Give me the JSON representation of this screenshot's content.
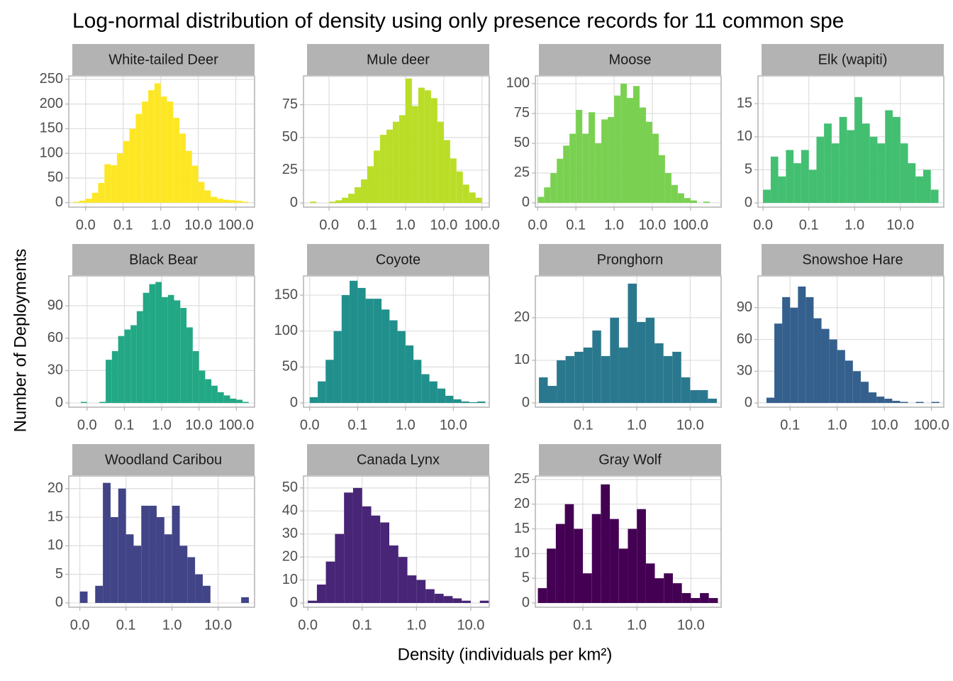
{
  "title": "Log-normal distribution of density using only presence records for 11 common spe",
  "x_label": "Density (individuals per km²)",
  "y_label": "Number of Deployments",
  "chart_data": [
    {
      "type": "histogram",
      "title": "White-tailed Deer",
      "color": "#fde725",
      "xscale": "log",
      "grid": true,
      "bins": [
        0.00464,
        0.00681,
        0.01,
        0.0147,
        0.0215,
        0.0316,
        0.0464,
        0.0681,
        0.1,
        0.147,
        0.215,
        0.316,
        0.464,
        0.681,
        1,
        1.47,
        2.15,
        3.16,
        4.64,
        6.81,
        10,
        14.7,
        21.5,
        31.6,
        46.4,
        68.1,
        100,
        147,
        215
      ],
      "values": [
        2,
        4,
        8,
        20,
        40,
        78,
        76,
        100,
        125,
        150,
        180,
        205,
        228,
        242,
        215,
        205,
        172,
        140,
        105,
        75,
        42,
        25,
        12,
        8,
        6,
        5,
        4,
        2
      ],
      "xlim": [
        0.00355,
        316
      ],
      "xticks": [
        {
          "value": 0.01,
          "label": "0.0"
        },
        0.1,
        {
          "value": 1,
          "label": "1.0"
        },
        {
          "value": 10,
          "label": "10.0"
        },
        {
          "value": 100,
          "label": "100.0"
        }
      ],
      "ylim": [
        -9,
        257
      ],
      "yticks": [
        0,
        50,
        100,
        150,
        200,
        250
      ]
    },
    {
      "type": "histogram",
      "title": "Mule deer",
      "color": "#bade28",
      "xscale": "log",
      "grid": true,
      "bins": [
        0.00316,
        0.00464,
        0.00681,
        0.01,
        0.0147,
        0.0215,
        0.0316,
        0.0464,
        0.0681,
        0.1,
        0.147,
        0.215,
        0.316,
        0.464,
        0.681,
        1,
        1.47,
        2.15,
        3.16,
        4.64,
        6.81,
        10,
        14.7,
        21.5,
        31.6,
        46.4,
        68.1,
        100
      ],
      "values": [
        1,
        0,
        0,
        1,
        2,
        4,
        7,
        12,
        18,
        28,
        40,
        52,
        56,
        62,
        67,
        95,
        74,
        88,
        86,
        80,
        62,
        48,
        34,
        24,
        14,
        8,
        4
      ],
      "xlim": [
        0.00214,
        155
      ],
      "xticks": [
        {
          "value": 0.01,
          "label": "0.0"
        },
        0.1,
        {
          "value": 1,
          "label": "1.0"
        },
        {
          "value": 10,
          "label": "10.0"
        },
        {
          "value": 100,
          "label": "100.0"
        }
      ],
      "ylim": [
        -3.2,
        97
      ],
      "yticks": [
        0,
        25,
        50,
        75
      ]
    },
    {
      "type": "histogram",
      "title": "Moose",
      "color": "#7ad151",
      "xscale": "log",
      "grid": true,
      "bins": [
        0.01,
        0.0147,
        0.0215,
        0.0316,
        0.0464,
        0.0681,
        0.1,
        0.147,
        0.215,
        0.316,
        0.464,
        0.681,
        1,
        1.47,
        2.15,
        3.16,
        4.64,
        6.81,
        10,
        14.7,
        21.5,
        31.6,
        46.4,
        68.1,
        100,
        147,
        215,
        316
      ],
      "values": [
        5,
        13,
        25,
        37,
        48,
        58,
        78,
        58,
        76,
        50,
        70,
        72,
        90,
        100,
        88,
        98,
        80,
        68,
        58,
        40,
        25,
        15,
        8,
        4,
        2,
        0,
        1
      ],
      "xlim": [
        0.0087,
        631
      ],
      "xticks": [
        {
          "value": 0.01,
          "label": "0.0"
        },
        0.1,
        {
          "value": 1,
          "label": "1.0"
        },
        {
          "value": 10,
          "label": "10.0"
        },
        {
          "value": 100,
          "label": "100.0"
        }
      ],
      "ylim": [
        -3.6,
        106.5
      ],
      "yticks": [
        0,
        25,
        50,
        75,
        100
      ]
    },
    {
      "type": "histogram",
      "title": "Elk (wapiti)",
      "color": "#43bf71",
      "xscale": "log",
      "grid": true,
      "bins": [
        0.01,
        0.0147,
        0.0215,
        0.0316,
        0.0464,
        0.0681,
        0.1,
        0.147,
        0.215,
        0.316,
        0.464,
        0.681,
        1,
        1.47,
        2.15,
        3.16,
        4.64,
        6.81,
        10,
        14.7,
        21.5,
        31.6,
        46.4,
        68.1
      ],
      "values": [
        2,
        7,
        4,
        8,
        6,
        8,
        5,
        10,
        12,
        9,
        13,
        11,
        16,
        12,
        10,
        9,
        14,
        13,
        9,
        6,
        4,
        5,
        2
      ],
      "xlim": [
        0.00776,
        89
      ],
      "xticks": [
        {
          "value": 0.01,
          "label": "0.0"
        },
        0.1,
        {
          "value": 1,
          "label": "1.0"
        },
        {
          "value": 10,
          "label": "10.0"
        }
      ],
      "ylim": [
        -0.64,
        19.2
      ],
      "yticks": [
        0,
        5,
        10,
        15
      ]
    },
    {
      "type": "histogram",
      "title": "Black Bear",
      "color": "#22a884",
      "xscale": "log",
      "grid": true,
      "bins": [
        0.00681,
        0.01,
        0.0147,
        0.0215,
        0.0316,
        0.0464,
        0.0681,
        0.1,
        0.147,
        0.215,
        0.316,
        0.464,
        0.681,
        1,
        1.47,
        2.15,
        3.16,
        4.64,
        6.81,
        10,
        14.7,
        21.5,
        31.6,
        46.4,
        68.1,
        100,
        147,
        215
      ],
      "values": [
        1,
        0,
        0,
        1,
        40,
        48,
        62,
        68,
        72,
        85,
        102,
        110,
        112,
        98,
        100,
        95,
        88,
        70,
        48,
        30,
        22,
        16,
        10,
        7,
        4,
        3,
        1
      ],
      "xlim": [
        0.00324,
        309
      ],
      "xticks": [
        {
          "value": 0.01,
          "label": "0.0"
        },
        0.1,
        {
          "value": 1,
          "label": "1.0"
        },
        {
          "value": 10,
          "label": "10.0"
        },
        {
          "value": 100,
          "label": "100.0"
        }
      ],
      "ylim": [
        -3.9,
        117.6
      ],
      "yticks": [
        0,
        30,
        60,
        90
      ]
    },
    {
      "type": "histogram",
      "title": "Coyote",
      "color": "#21908c",
      "xscale": "log",
      "grid": true,
      "bins": [
        0.01,
        0.0147,
        0.0215,
        0.0316,
        0.0464,
        0.0681,
        0.1,
        0.147,
        0.215,
        0.316,
        0.464,
        0.681,
        1,
        1.47,
        2.15,
        3.16,
        4.64,
        6.81,
        10,
        14.7,
        21.5,
        31.6,
        46.4
      ],
      "values": [
        8,
        30,
        60,
        100,
        150,
        170,
        160,
        145,
        145,
        130,
        115,
        100,
        80,
        60,
        40,
        30,
        20,
        10,
        5,
        2,
        1,
        2
      ],
      "xlim": [
        0.00741,
        56.2
      ],
      "xticks": [
        {
          "value": 0.01,
          "label": "0.0"
        },
        0.1,
        {
          "value": 1,
          "label": "1.0"
        },
        {
          "value": 10,
          "label": "10.0"
        }
      ],
      "ylim": [
        -5.9,
        176.7
      ],
      "yticks": [
        0,
        50,
        100,
        150
      ]
    },
    {
      "type": "histogram",
      "title": "Pronghorn",
      "color": "#2a788e",
      "xscale": "log",
      "grid": true,
      "bins": [
        0.0147,
        0.0215,
        0.0316,
        0.0464,
        0.0681,
        0.1,
        0.147,
        0.215,
        0.316,
        0.464,
        0.681,
        1,
        1.47,
        2.15,
        3.16,
        4.64,
        6.81,
        10,
        14.7,
        21.5,
        31.6
      ],
      "values": [
        6,
        4,
        10,
        11,
        12,
        13,
        17,
        11,
        20,
        13,
        28,
        19,
        20,
        14,
        11,
        12,
        6,
        3,
        3,
        1
      ],
      "xlim": [
        0.0126,
        38
      ],
      "xticks": [
        0.1,
        {
          "value": 1,
          "label": "1.0"
        },
        {
          "value": 10,
          "label": "10.0"
        }
      ],
      "ylim": [
        -1,
        29.8
      ],
      "yticks": [
        0,
        10,
        20
      ]
    },
    {
      "type": "histogram",
      "title": "Snowshoe Hare",
      "color": "#35608d",
      "xscale": "log",
      "grid": true,
      "bins": [
        0.0316,
        0.0464,
        0.0681,
        0.1,
        0.147,
        0.215,
        0.316,
        0.464,
        0.681,
        1,
        1.47,
        2.15,
        3.16,
        4.64,
        6.81,
        10,
        14.7,
        21.5,
        31.6,
        46.4,
        68.1,
        100,
        147
      ],
      "values": [
        5,
        75,
        100,
        90,
        110,
        100,
        80,
        70,
        60,
        50,
        40,
        30,
        20,
        10,
        6,
        4,
        2,
        1,
        0,
        1,
        0,
        1
      ],
      "xlim": [
        0.0209,
        182
      ],
      "xticks": [
        0.1,
        {
          "value": 1,
          "label": "1.0"
        },
        {
          "value": 10,
          "label": "10.0"
        },
        {
          "value": 100,
          "label": "100.0"
        }
      ],
      "ylim": [
        -4,
        120
      ],
      "yticks": [
        0,
        30,
        60,
        90
      ]
    },
    {
      "type": "histogram",
      "title": "Woodland Caribou",
      "color": "#414487",
      "xscale": "log",
      "grid": true,
      "bins": [
        0.01,
        0.0147,
        0.0215,
        0.0316,
        0.0464,
        0.0681,
        0.1,
        0.147,
        0.215,
        0.316,
        0.464,
        0.681,
        1,
        1.47,
        2.15,
        3.16,
        4.64,
        6.81,
        10,
        14.7,
        21.5,
        31.6,
        46.4
      ],
      "values": [
        2,
        0,
        3,
        21,
        15,
        20,
        12,
        10,
        17,
        17,
        15,
        12,
        17,
        10,
        8,
        5,
        3,
        0,
        0,
        0,
        0,
        1
      ],
      "xlim": [
        0.00575,
        61.7
      ],
      "xticks": [
        {
          "value": 0.01,
          "label": "0.0"
        },
        0.1,
        {
          "value": 1,
          "label": "1.0"
        },
        {
          "value": 10,
          "label": "10.0"
        }
      ],
      "ylim": [
        -0.75,
        22.2
      ],
      "yticks": [
        0,
        5,
        10,
        15,
        20
      ]
    },
    {
      "type": "histogram",
      "title": "Canada Lynx",
      "color": "#482576",
      "xscale": "log",
      "grid": true,
      "bins": [
        0.01,
        0.0147,
        0.0215,
        0.0316,
        0.0464,
        0.0681,
        0.1,
        0.147,
        0.215,
        0.316,
        0.464,
        0.681,
        1,
        1.47,
        2.15,
        3.16,
        4.64,
        6.81,
        10,
        14.7,
        21.5
      ],
      "values": [
        1,
        8,
        18,
        30,
        48,
        50,
        42,
        38,
        35,
        25,
        20,
        12,
        10,
        6,
        4,
        3,
        2,
        1,
        0,
        1
      ],
      "xlim": [
        0.00832,
        21.9
      ],
      "xticks": [
        {
          "value": 0.01,
          "label": "0.0"
        },
        0.1,
        {
          "value": 1,
          "label": "1.0"
        },
        {
          "value": 10,
          "label": "10.0"
        }
      ],
      "ylim": [
        -1.85,
        55.2
      ],
      "yticks": [
        0,
        10,
        20,
        30,
        40,
        50
      ]
    },
    {
      "type": "histogram",
      "title": "Gray Wolf",
      "color": "#440154",
      "xscale": "log",
      "grid": true,
      "bins": [
        0.0147,
        0.0215,
        0.0316,
        0.0464,
        0.0681,
        0.1,
        0.147,
        0.215,
        0.316,
        0.464,
        0.681,
        1,
        1.47,
        2.15,
        3.16,
        4.64,
        6.81,
        10,
        14.7,
        21.5,
        31.6
      ],
      "values": [
        3,
        11,
        16,
        20,
        15,
        6,
        18,
        24,
        17,
        11,
        15,
        19,
        8,
        5,
        6,
        4,
        2,
        1,
        2,
        1
      ],
      "xlim": [
        0.0132,
        36.3
      ],
      "xticks": [
        0.1,
        {
          "value": 1,
          "label": "1.0"
        },
        {
          "value": 10,
          "label": "10.0"
        }
      ],
      "ylim": [
        -0.86,
        25.7
      ],
      "yticks": [
        0,
        5,
        10,
        15,
        20,
        25
      ]
    }
  ]
}
